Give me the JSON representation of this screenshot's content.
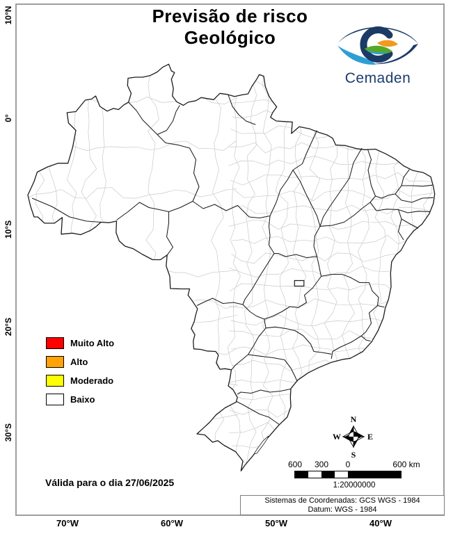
{
  "header": {
    "title_line1": "Previsão de risco",
    "title_line2": "Geológico"
  },
  "logo": {
    "text": "Cemaden"
  },
  "legend": {
    "items": [
      {
        "label": "Muito Alto",
        "color": "#ff0000"
      },
      {
        "label": "Alto",
        "color": "#ffa307"
      },
      {
        "label": "Moderado",
        "color": "#fdff00"
      },
      {
        "label": "Baixo",
        "color": "#ffffff"
      }
    ]
  },
  "validity": {
    "text": "Válida para o dia 27/06/2025"
  },
  "compass": {
    "n": "N",
    "s": "S",
    "e": "E",
    "w": "W"
  },
  "scalebar": {
    "tick_600": "600",
    "tick_300": "300",
    "tick_0": "0",
    "tick_end": "600 km",
    "ratio": "1:20000000"
  },
  "coords_box": {
    "line1": "Sistemas de Coordenadas: GCS WGS - 1984",
    "line2": "Datum: WGS - 1984"
  },
  "axes": {
    "lat": [
      "10°N",
      "0°",
      "10°S",
      "20°S",
      "30°S"
    ],
    "lon": [
      "70°W",
      "60°W",
      "50°W",
      "40°W"
    ]
  },
  "map_colors": {
    "state_border": "#1c1c1c",
    "municipality_border": "#c9c9c9",
    "fill": "#ffffff"
  }
}
